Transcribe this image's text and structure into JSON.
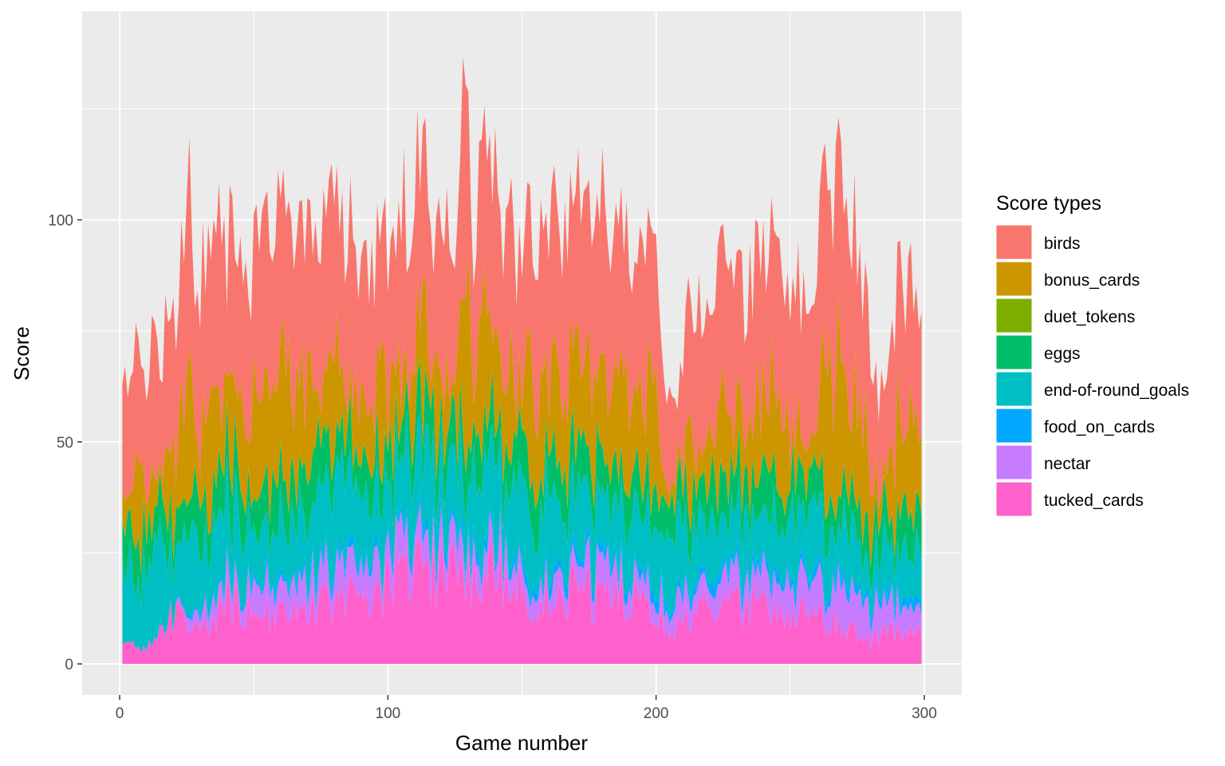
{
  "chart_data": {
    "type": "area",
    "stacked": true,
    "xlabel": "Game number",
    "ylabel": "Score",
    "xlim": [
      -14,
      314
    ],
    "ylim": [
      -7,
      147
    ],
    "x_ticks": [
      0,
      100,
      200,
      300
    ],
    "y_ticks": [
      0,
      50,
      100
    ],
    "grid": true,
    "legend": {
      "title": "Score types",
      "position": "right",
      "entries": [
        "birds",
        "bonus_cards",
        "duet_tokens",
        "eggs",
        "end-of-round_goals",
        "food_on_cards",
        "nectar",
        "tucked_cards"
      ]
    },
    "colors": {
      "tucked_cards": "#FF61CC",
      "nectar": "#C77CFF",
      "food_on_cards": "#00A9FF",
      "end-of-round_goals": "#00BFC4",
      "eggs": "#00BE67",
      "duet_tokens": "#7CAE00",
      "bonus_cards": "#CD9600",
      "birds": "#F8766D"
    },
    "stack_order_bottom_to_top": [
      "tucked_cards",
      "nectar",
      "food_on_cards",
      "end-of-round_goals",
      "eggs",
      "duet_tokens",
      "bonus_cards",
      "birds"
    ],
    "games": {
      "first": 1,
      "last": 299
    },
    "totals_anchors": [
      [
        1,
        62
      ],
      [
        3,
        68
      ],
      [
        6,
        72
      ],
      [
        9,
        70
      ],
      [
        12,
        74
      ],
      [
        15,
        78
      ],
      [
        18,
        75
      ],
      [
        20,
        76
      ],
      [
        22,
        88
      ],
      [
        24,
        92
      ],
      [
        26,
        125
      ],
      [
        28,
        86
      ],
      [
        32,
        92
      ],
      [
        38,
        98
      ],
      [
        45,
        95
      ],
      [
        50,
        93
      ],
      [
        55,
        100
      ],
      [
        61,
        112
      ],
      [
        65,
        97
      ],
      [
        70,
        100
      ],
      [
        78,
        108
      ],
      [
        85,
        100
      ],
      [
        90,
        95
      ],
      [
        100,
        98
      ],
      [
        105,
        104
      ],
      [
        108,
        108
      ],
      [
        112,
        118
      ],
      [
        116,
        105
      ],
      [
        120,
        102
      ],
      [
        125,
        97
      ],
      [
        128,
        139
      ],
      [
        132,
        100
      ],
      [
        138,
        124
      ],
      [
        142,
        104
      ],
      [
        148,
        98
      ],
      [
        155,
        104
      ],
      [
        160,
        100
      ],
      [
        165,
        102
      ],
      [
        170,
        110
      ],
      [
        175,
        100
      ],
      [
        180,
        104
      ],
      [
        185,
        98
      ],
      [
        190,
        96
      ],
      [
        195,
        100
      ],
      [
        200,
        95
      ],
      [
        204,
        70
      ],
      [
        206,
        60
      ],
      [
        210,
        72
      ],
      [
        215,
        90
      ],
      [
        220,
        85
      ],
      [
        225,
        93
      ],
      [
        230,
        86
      ],
      [
        238,
        90
      ],
      [
        245,
        97
      ],
      [
        250,
        86
      ],
      [
        255,
        90
      ],
      [
        260,
        101
      ],
      [
        265,
        108
      ],
      [
        270,
        120
      ],
      [
        274,
        102
      ],
      [
        276,
        90
      ],
      [
        279,
        80
      ],
      [
        282,
        64
      ],
      [
        285,
        60
      ],
      [
        289,
        84
      ],
      [
        293,
        88
      ],
      [
        297,
        83
      ],
      [
        299,
        86
      ]
    ],
    "birds_share_anchors": [
      [
        1,
        0.4
      ],
      [
        100,
        0.34
      ],
      [
        200,
        0.36
      ],
      [
        299,
        0.38
      ]
    ],
    "lower_layers_anchors": {
      "tucked_cards": [
        [
          1,
          4
        ],
        [
          10,
          3
        ],
        [
          20,
          12
        ],
        [
          30,
          6
        ],
        [
          40,
          14
        ],
        [
          60,
          10
        ],
        [
          80,
          15
        ],
        [
          100,
          18
        ],
        [
          110,
          22
        ],
        [
          120,
          21
        ],
        [
          130,
          18
        ],
        [
          140,
          20
        ],
        [
          150,
          16
        ],
        [
          170,
          16
        ],
        [
          190,
          15
        ],
        [
          205,
          8
        ],
        [
          220,
          13
        ],
        [
          240,
          13
        ],
        [
          260,
          12
        ],
        [
          280,
          5
        ],
        [
          290,
          8
        ],
        [
          299,
          6
        ]
      ],
      "nectar": [
        [
          1,
          0
        ],
        [
          20,
          0
        ],
        [
          30,
          4
        ],
        [
          60,
          6
        ],
        [
          100,
          7
        ],
        [
          120,
          6
        ],
        [
          150,
          5
        ],
        [
          180,
          6
        ],
        [
          200,
          5
        ],
        [
          240,
          6
        ],
        [
          270,
          8
        ],
        [
          299,
          5
        ]
      ],
      "food_on_cards": [
        [
          1,
          0
        ],
        [
          40,
          1
        ],
        [
          100,
          2
        ],
        [
          200,
          2
        ],
        [
          299,
          2
        ]
      ],
      "end-of-round_goals": [
        [
          1,
          18
        ],
        [
          20,
          16
        ],
        [
          40,
          14
        ],
        [
          80,
          15
        ],
        [
          120,
          16
        ],
        [
          160,
          15
        ],
        [
          200,
          12
        ],
        [
          240,
          14
        ],
        [
          280,
          10
        ],
        [
          299,
          12
        ]
      ],
      "eggs": [
        [
          1,
          10
        ],
        [
          20,
          9
        ],
        [
          60,
          10
        ],
        [
          100,
          9
        ],
        [
          150,
          9
        ],
        [
          200,
          8
        ],
        [
          240,
          9
        ],
        [
          280,
          7
        ],
        [
          299,
          8
        ]
      ],
      "duet_tokens": [
        [
          1,
          0.3
        ],
        [
          100,
          0.4
        ],
        [
          200,
          0.4
        ],
        [
          299,
          0.3
        ]
      ]
    }
  }
}
